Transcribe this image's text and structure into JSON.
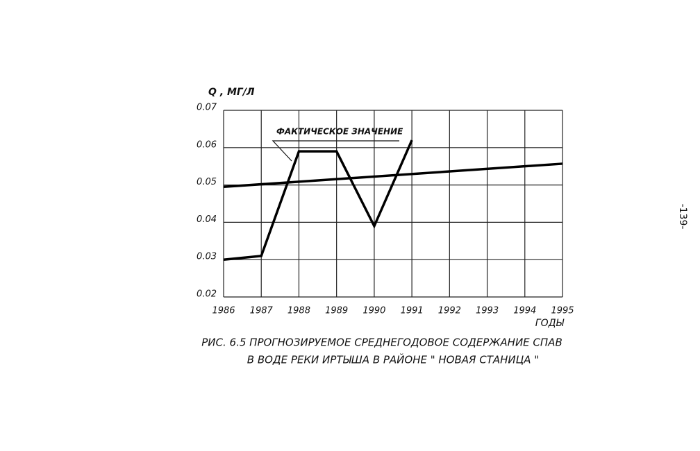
{
  "chart_data": {
    "type": "line",
    "y_label": "Q , МГ/Л",
    "x_label": "ГОДЫ",
    "caption": [
      "РИС. 6.5 ПРОГНОЗИРУЕМОЕ СРЕДНЕГОДОВОЕ СОДЕРЖАНИЕ СПАВ",
      "В ВОДЕ РЕКИ ИРТЫША В РАЙОНЕ \" НОВАЯ СТАНИЦА \""
    ],
    "xlim": [
      1986,
      1995
    ],
    "xticks": [
      1986,
      1987,
      1988,
      1989,
      1990,
      1991,
      1992,
      1993,
      1994,
      1995
    ],
    "ylim": [
      0.02,
      0.07
    ],
    "yticks": [
      0.02,
      0.03,
      0.04,
      0.05,
      0.06,
      0.07
    ],
    "grid": true,
    "series": [
      {
        "name": "ФАКТИЧЕСКОЕ ЗНАЧЕНИЕ",
        "color": "#000000",
        "x": [
          1986,
          1987,
          1988,
          1989,
          1990,
          1991
        ],
        "values": [
          0.03,
          0.031,
          0.059,
          0.059,
          0.039,
          0.062
        ]
      },
      {
        "color": "#000000",
        "x": [
          1986,
          1995
        ],
        "values": [
          0.0495,
          0.0557
        ]
      }
    ]
  },
  "page_number": "-139-"
}
